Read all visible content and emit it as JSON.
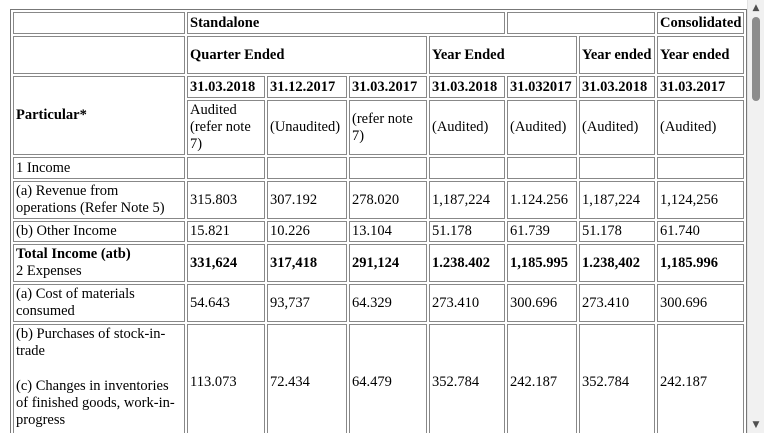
{
  "header": {
    "standalone": "Standalone",
    "consolidated": "Consolidated",
    "quarter_ended": "Quarter Ended",
    "year_ended": "Year Ended",
    "year_ended_c1": "Year ended",
    "year_ended_c2": "Year ended",
    "particular": "Particular*",
    "dates": [
      "31.03.2018",
      "31.12.2017",
      "31.03.2017",
      "31.03.2018",
      "31.032017",
      "31.03.2018",
      "31.03.2017"
    ],
    "audit_col1": "Audited (refer note 7)",
    "audit_col2": "(Unaudited)",
    "audit_col3": "(refer note 7)",
    "audit_col4": "(Audited)",
    "audit_col5": "(Audited)",
    "audit_col6": "(Audited)",
    "audit_col7": "(Audited)"
  },
  "rows": {
    "income": {
      "label": "1 Income"
    },
    "revenue": {
      "label": "(a) Revenue from operations (Refer Note 5)",
      "values": [
        "315.803",
        "307.192",
        "278.020",
        "1,187,224",
        "1.124.256",
        "1,187,224",
        "1,124,256"
      ]
    },
    "other_income": {
      "label": "(b) Other Income",
      "values": [
        "15.821",
        "10.226",
        "13.104",
        "51.178",
        "61.739",
        "51.178",
        "61.740"
      ]
    },
    "total_income": {
      "label1": "Total Income (atb)",
      "label2": "2 Expenses",
      "values": [
        "331,624",
        "317,418",
        "291,124",
        "1.238.402",
        "1,185.995",
        "1.238,402",
        "1,185.996"
      ]
    },
    "cost_materials": {
      "label": "(a) Cost of materials consumed",
      "values": [
        "54.643",
        "93,737",
        "64.329",
        "273.410",
        "300.696",
        "273.410",
        "300.696"
      ]
    },
    "purchases": {
      "label": "(b) Purchases of stock-in-trade"
    },
    "changes": {
      "label": "(c) Changes in inventories of finished goods, work-in-progress",
      "values": [
        "113.073",
        "72.434",
        "64.479",
        "352.784",
        "242.187",
        "352.784",
        "242.187"
      ]
    }
  },
  "icons": {
    "scroll_up": "triangle-up-icon",
    "scroll_down": "triangle-down-icon"
  }
}
